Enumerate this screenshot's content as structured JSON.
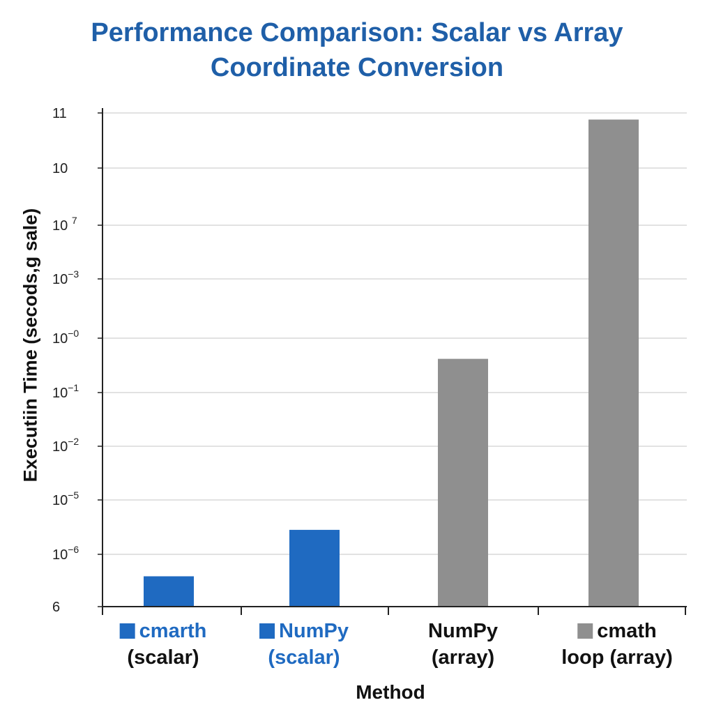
{
  "chart_data": {
    "type": "bar",
    "title_lines": [
      "Performance Comparison: Scalar vs Array",
      "Coordinate Conversion"
    ],
    "xlabel": "Method",
    "ylabel": "Executiin Time (secods,g sale)",
    "y_ticks": [
      {
        "base": "6",
        "exp": ""
      },
      {
        "base": "10",
        "exp": "−6"
      },
      {
        "base": "10",
        "exp": "−5"
      },
      {
        "base": "10",
        "exp": "−2"
      },
      {
        "base": "10",
        "exp": "−1"
      },
      {
        "base": "10",
        "exp": "−0"
      },
      {
        "base": "10",
        "exp": "−3"
      },
      {
        "base": "10 ",
        "exp": "7"
      },
      {
        "base": "10",
        "exp": ""
      },
      {
        "base": "11",
        "exp": ""
      }
    ],
    "grid": true,
    "categories": [
      {
        "line1": "cmarth",
        "line2": "(scalar)",
        "line1_color": "#1f6ac1",
        "line2_color": "#111111",
        "swatch": "#1f6ac1"
      },
      {
        "line1": "NumPy",
        "line2": "(scalar)",
        "line1_color": "#1f6ac1",
        "line2_color": "#1f6ac1",
        "swatch": "#1f6ac1"
      },
      {
        "line1": "NumPy",
        "line2": "(array)",
        "line1_color": "#111111",
        "line2_color": "#111111",
        "swatch": ""
      },
      {
        "line1": "cmath",
        "line2": "loop (array)",
        "line1_color": "#111111",
        "line2_color": "#111111",
        "swatch": "#8f8f8f"
      }
    ],
    "values_tick_units": [
      0.58,
      1.45,
      4.62,
      8.88
    ],
    "bar_colors": [
      "#1f6ac1",
      "#1f6ac1",
      "#8f8f8f",
      "#8f8f8f"
    ]
  }
}
